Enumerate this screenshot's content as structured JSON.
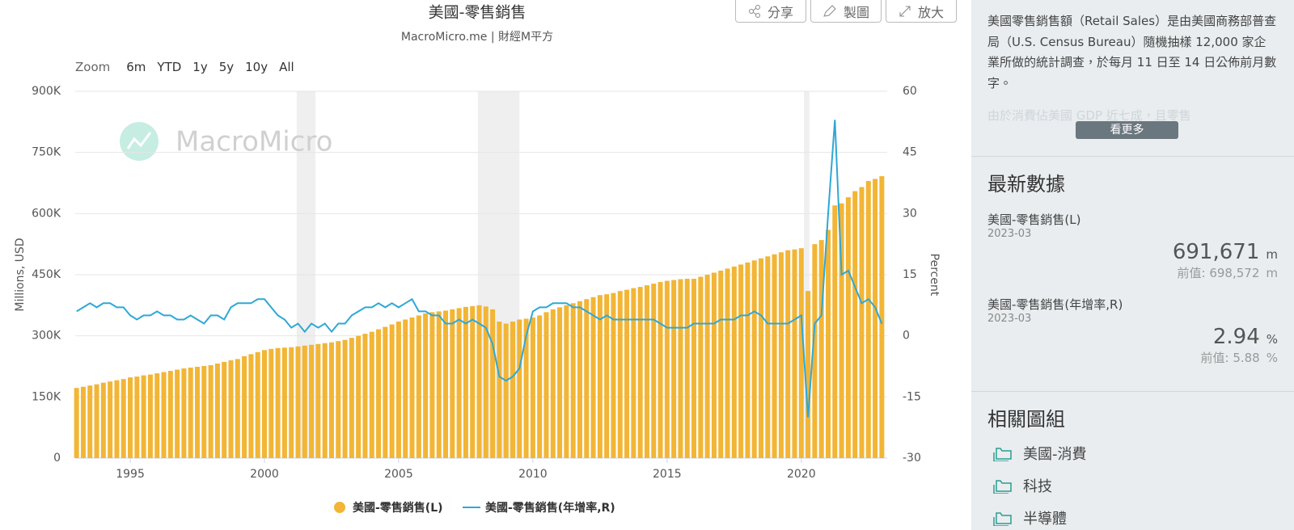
{
  "toolbar": {
    "buttons": [
      "分享",
      "製圖",
      "放大"
    ]
  },
  "chart_data": {
    "type": "combo",
    "title": "美國-零售銷售",
    "subtitle": "MacroMicro.me | 財經M平方",
    "watermark": "MacroMicro",
    "zoom": [
      "Zoom",
      "6m",
      "YTD",
      "1y",
      "5y",
      "10y",
      "All"
    ],
    "ylabel": "Millions, USD",
    "y2label": "Percent",
    "xlim": [
      1992.95,
      2023.2
    ],
    "xticks": [
      1995,
      2000,
      2005,
      2010,
      2015,
      2020
    ],
    "ylim": [
      0,
      900000
    ],
    "yticks": [
      0,
      {
        "value": 150000,
        "label": "150K"
      },
      {
        "value": 300000,
        "label": "300K"
      },
      {
        "value": 450000,
        "label": "450K"
      },
      {
        "value": 600000,
        "label": "600K"
      },
      {
        "value": 750000,
        "label": "750K"
      },
      {
        "value": 900000,
        "label": "900K"
      }
    ],
    "y2lim": [
      -30,
      60
    ],
    "y2ticks": [
      -30,
      -15,
      0,
      15,
      30,
      45,
      60
    ],
    "grid": true,
    "recessions": [
      [
        2001.2,
        2001.9
      ],
      [
        2007.95,
        2009.5
      ],
      [
        2020.1,
        2020.3
      ]
    ],
    "x": [
      1993,
      1993.25,
      1993.5,
      1993.75,
      1994,
      1994.25,
      1994.5,
      1994.75,
      1995,
      1995.25,
      1995.5,
      1995.75,
      1996,
      1996.25,
      1996.5,
      1996.75,
      1997,
      1997.25,
      1997.5,
      1997.75,
      1998,
      1998.25,
      1998.5,
      1998.75,
      1999,
      1999.25,
      1999.5,
      1999.75,
      2000,
      2000.25,
      2000.5,
      2000.75,
      2001,
      2001.25,
      2001.5,
      2001.75,
      2002,
      2002.25,
      2002.5,
      2002.75,
      2003,
      2003.25,
      2003.5,
      2003.75,
      2004,
      2004.25,
      2004.5,
      2004.75,
      2005,
      2005.25,
      2005.5,
      2005.75,
      2006,
      2006.25,
      2006.5,
      2006.75,
      2007,
      2007.25,
      2007.5,
      2007.75,
      2008,
      2008.25,
      2008.5,
      2008.75,
      2009,
      2009.25,
      2009.5,
      2009.75,
      2010,
      2010.25,
      2010.5,
      2010.75,
      2011,
      2011.25,
      2011.5,
      2011.75,
      2012,
      2012.25,
      2012.5,
      2012.75,
      2013,
      2013.25,
      2013.5,
      2013.75,
      2014,
      2014.25,
      2014.5,
      2014.75,
      2015,
      2015.25,
      2015.5,
      2015.75,
      2016,
      2016.25,
      2016.5,
      2016.75,
      2017,
      2017.25,
      2017.5,
      2017.75,
      2018,
      2018.25,
      2018.5,
      2018.75,
      2019,
      2019.25,
      2019.5,
      2019.75,
      2020,
      2020.25,
      2020.5,
      2020.75,
      2021,
      2021.25,
      2021.5,
      2021.75,
      2022,
      2022.25,
      2022.5,
      2022.75,
      2023
    ],
    "series": [
      {
        "name": "美國-零售銷售(L)",
        "color": "#f2b535",
        "values": [
          172000,
          175000,
          178000,
          181000,
          185000,
          188000,
          191000,
          194000,
          198000,
          200000,
          203000,
          205000,
          208000,
          211000,
          214000,
          217000,
          220000,
          222000,
          224000,
          226000,
          228000,
          232000,
          236000,
          240000,
          243000,
          250000,
          255000,
          260000,
          265000,
          268000,
          270000,
          271000,
          272000,
          274000,
          276000,
          278000,
          280000,
          282000,
          284000,
          287000,
          290000,
          295000,
          300000,
          305000,
          310000,
          316000,
          322000,
          328000,
          335000,
          340000,
          345000,
          350000,
          355000,
          358000,
          360000,
          362000,
          365000,
          368000,
          371000,
          373000,
          375000,
          372000,
          365000,
          335000,
          330000,
          335000,
          340000,
          342000,
          345000,
          350000,
          358000,
          365000,
          370000,
          375000,
          380000,
          385000,
          390000,
          395000,
          400000,
          402000,
          405000,
          410000,
          413000,
          417000,
          420000,
          424000,
          428000,
          432000,
          435000,
          437000,
          439000,
          440000,
          440000,
          445000,
          450000,
          455000,
          460000,
          465000,
          470000,
          475000,
          480000,
          485000,
          490000,
          495000,
          500000,
          505000,
          510000,
          512000,
          515000,
          410000,
          525000,
          535000,
          560000,
          620000,
          625000,
          640000,
          655000,
          665000,
          680000,
          685000,
          691671
        ]
      },
      {
        "name": "美國-零售銷售(年增率,R)",
        "color": "#2ea8d5",
        "axis": "y2",
        "values": [
          6,
          7,
          8,
          7,
          8,
          8,
          7,
          7,
          5,
          4,
          5,
          5,
          6,
          5,
          5,
          4,
          4,
          5,
          4,
          3,
          5,
          5,
          4,
          7,
          8,
          8,
          8,
          9,
          9,
          7,
          5,
          4,
          2,
          3,
          1,
          3,
          2,
          3,
          1,
          3,
          3,
          5,
          6,
          7,
          7,
          8,
          7,
          8,
          7,
          8,
          9,
          6,
          6,
          5,
          5,
          3,
          3,
          4,
          3,
          4,
          3,
          2,
          -2,
          -10,
          -11,
          -10,
          -8,
          0,
          6,
          7,
          7,
          8,
          8,
          8,
          7,
          7,
          6,
          5,
          4,
          5,
          4,
          4,
          4,
          4,
          4,
          4,
          4,
          3,
          2,
          2,
          2,
          2,
          3,
          3,
          3,
          3,
          4,
          4,
          4,
          5,
          5,
          6,
          5,
          3,
          3,
          3,
          3,
          4,
          5,
          -20,
          3,
          5,
          30,
          53,
          15,
          16,
          12,
          8,
          9,
          7,
          2.94
        ]
      }
    ]
  },
  "sidebar": {
    "description": "美國零售銷售額（Retail Sales）是由美國商務部普查局（U.S. Census Bureau）隨機抽樣 12,000 家企業所做的統計調查，於每月 11 日至 14 日公佈前月數字。",
    "description_more": "由於消費佔美國 GDP 近七成，且零售",
    "more_button": "看更多",
    "latest_title": "最新數據",
    "latest": [
      {
        "name": "美國-零售銷售(L)",
        "date": "2023-03",
        "value": "691,671",
        "unit": "m",
        "prev": "前值: 698,572",
        "prev_unit": "m"
      },
      {
        "name": "美國-零售銷售(年增率,R)",
        "date": "2023-03",
        "value": "2.94",
        "unit": "%",
        "prev": "前值: 5.88",
        "prev_unit": "%"
      }
    ],
    "related_title": "相關圖組",
    "related": [
      "美國-消費",
      "科技",
      "半導體"
    ]
  }
}
